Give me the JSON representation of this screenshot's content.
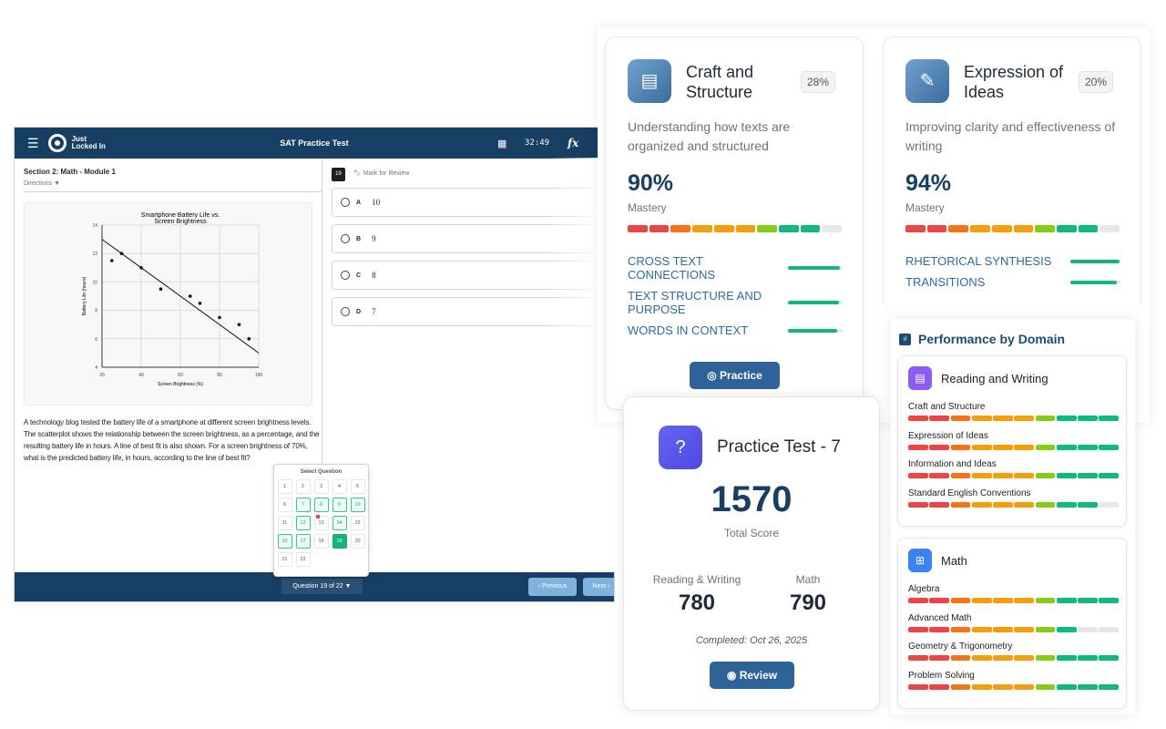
{
  "exam": {
    "menu_icon": "hamburger-icon",
    "logo_text": "Just Locked In",
    "title": "SAT Practice Test",
    "calculator_icon": "calculator-icon",
    "timer": "32:49",
    "formula_icon": "fx-icon",
    "section": "Section 2: Math - Module 1",
    "directions": "Directions ▼",
    "question_number": "19",
    "mark_for_review": "Mark for Review",
    "question_text": "A technology blog tested the battery life of a smartphone at different screen brightness levels. The scatterplot shows the relationship between the screen brightness, as a percentage, and the resulting battery life in hours. A line of best fit is also shown. For a screen brightness of 70%, what is the predicted battery life, in hours, according to the line of best fit?",
    "options": [
      {
        "letter": "A",
        "value": "10"
      },
      {
        "letter": "B",
        "value": "9"
      },
      {
        "letter": "C",
        "value": "8"
      },
      {
        "letter": "D",
        "value": "7"
      }
    ],
    "question_selector": "Question 19 of 22 ▼",
    "previous": "‹ Previous",
    "next": "Next ›",
    "grid": {
      "title": "Select Question",
      "total": 22,
      "answered": [
        7,
        8,
        9,
        10,
        12,
        14,
        16,
        17
      ],
      "current": 19,
      "flagged": [
        13
      ]
    }
  },
  "chart_data": {
    "type": "scatter",
    "title": "Smartphone Battery Life vs. Screen Brightness",
    "xlabel": "Screen Brightness (%)",
    "ylabel": "Battery Life (hours)",
    "xlim": [
      20,
      100
    ],
    "ylim": [
      4,
      14
    ],
    "xticks": [
      20,
      40,
      60,
      80,
      100
    ],
    "yticks": [
      4,
      6,
      8,
      10,
      12,
      14
    ],
    "grid": true,
    "points": [
      [
        25,
        11.5
      ],
      [
        30,
        12
      ],
      [
        40,
        11
      ],
      [
        50,
        9.5
      ],
      [
        65,
        9
      ],
      [
        70,
        8.5
      ],
      [
        80,
        7.5
      ],
      [
        90,
        7
      ],
      [
        95,
        6
      ]
    ],
    "best_fit": [
      [
        20,
        13
      ],
      [
        100,
        5
      ]
    ]
  },
  "colors": {
    "segments": [
      "#ef4444",
      "#ef4444",
      "#f97316",
      "#f59e0b",
      "#f59e0b",
      "#f59e0b",
      "#84cc16",
      "#10b981",
      "#10b981",
      "#10b981"
    ],
    "empty": "#e5e7eb"
  },
  "skill_cards": [
    {
      "title": "Craft and Structure",
      "icon": "document-icon",
      "weight": "28%",
      "description": "Understanding how texts are organized and structured",
      "mastery": "90%",
      "mastery_label": "Mastery",
      "filled": 9,
      "skills": [
        {
          "name": "CROSS TEXT CONNECTIONS",
          "value": 0.95
        },
        {
          "name": "TEXT STRUCTURE AND PURPOSE",
          "value": 0.93
        },
        {
          "name": "WORDS IN CONTEXT",
          "value": 0.9
        }
      ],
      "button": "Practice"
    },
    {
      "title": "Expression of Ideas",
      "icon": "pencil-icon",
      "weight": "20%",
      "description": "Improving clarity and effectiveness of writing",
      "mastery": "94%",
      "mastery_label": "Mastery",
      "filled": 9,
      "skills": [
        {
          "name": "RHETORICAL SYNTHESIS",
          "value": 0.98
        },
        {
          "name": "TRANSITIONS",
          "value": 0.92
        }
      ]
    }
  ],
  "practice_test": {
    "title": "Practice Test - 7",
    "total": "1570",
    "total_label": "Total Score",
    "rw_label": "Reading & Writing",
    "rw": "780",
    "math_label": "Math",
    "math": "790",
    "completed": "Completed: Oct 26, 2025",
    "button": "Review"
  },
  "performance": {
    "title": "Performance by Domain",
    "domains": [
      {
        "name": "Reading and Writing",
        "color": "#8b5cf6",
        "subs": [
          {
            "name": "Craft and Structure",
            "filled": 10
          },
          {
            "name": "Expression of Ideas",
            "filled": 10
          },
          {
            "name": "Information and Ideas",
            "filled": 10
          },
          {
            "name": "Standard English Conventions",
            "filled": 9
          }
        ]
      },
      {
        "name": "Math",
        "color": "#3b82f6",
        "subs": [
          {
            "name": "Algebra",
            "filled": 10
          },
          {
            "name": "Advanced Math",
            "filled": 8
          },
          {
            "name": "Geometry & Trigonometry",
            "filled": 10
          },
          {
            "name": "Problem Solving",
            "filled": 10
          }
        ]
      }
    ]
  }
}
